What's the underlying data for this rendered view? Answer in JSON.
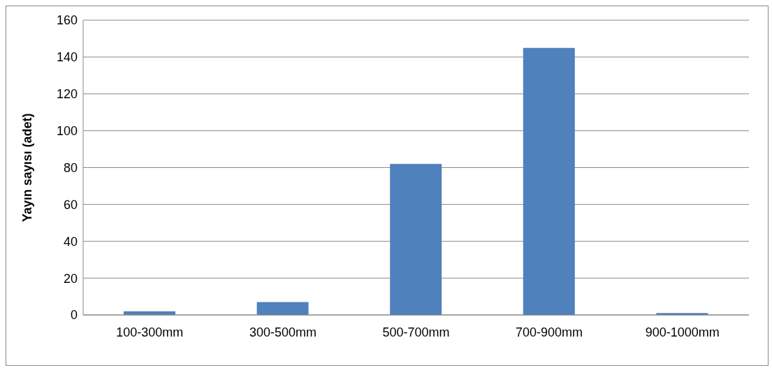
{
  "chart_data": {
    "type": "bar",
    "ylabel": "Yayın sayısı (adet)",
    "categories": [
      "100-300mm",
      "300-500mm",
      "500-700mm",
      "700-900mm",
      "900-1000mm"
    ],
    "values": [
      2,
      7,
      82,
      145,
      1
    ],
    "color": "#4f81bd",
    "ylim": [
      0,
      160
    ],
    "yticks": [
      0,
      20,
      40,
      60,
      80,
      100,
      120,
      140,
      160
    ],
    "grid": "y",
    "legend": false
  }
}
